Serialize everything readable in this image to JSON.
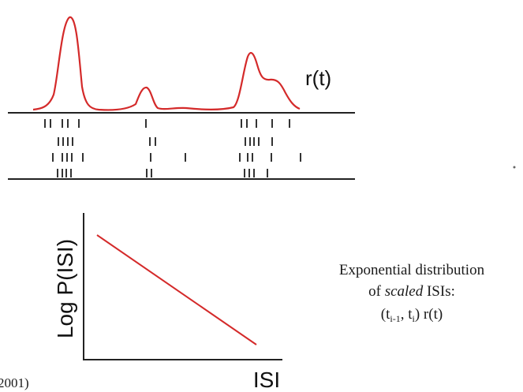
{
  "labels": {
    "rate": "r(t)",
    "y_axis": "Log P(ISI)",
    "x_axis": "ISI",
    "citation_fragment": "2001)"
  },
  "caption": {
    "line1": "Exponential distribution",
    "line2_prefix": "of ",
    "line2_italic": "scaled",
    "line2_suffix": " ISIs:",
    "line3_open": "(t",
    "sub_a": "i-1",
    "line3_mid": ",  t",
    "sub_b": "i",
    "line3_close": ") r(t)"
  },
  "colors": {
    "curve": "#d42a2a",
    "axis": "#222222",
    "spike": "#333333",
    "text": "#111111"
  }
}
